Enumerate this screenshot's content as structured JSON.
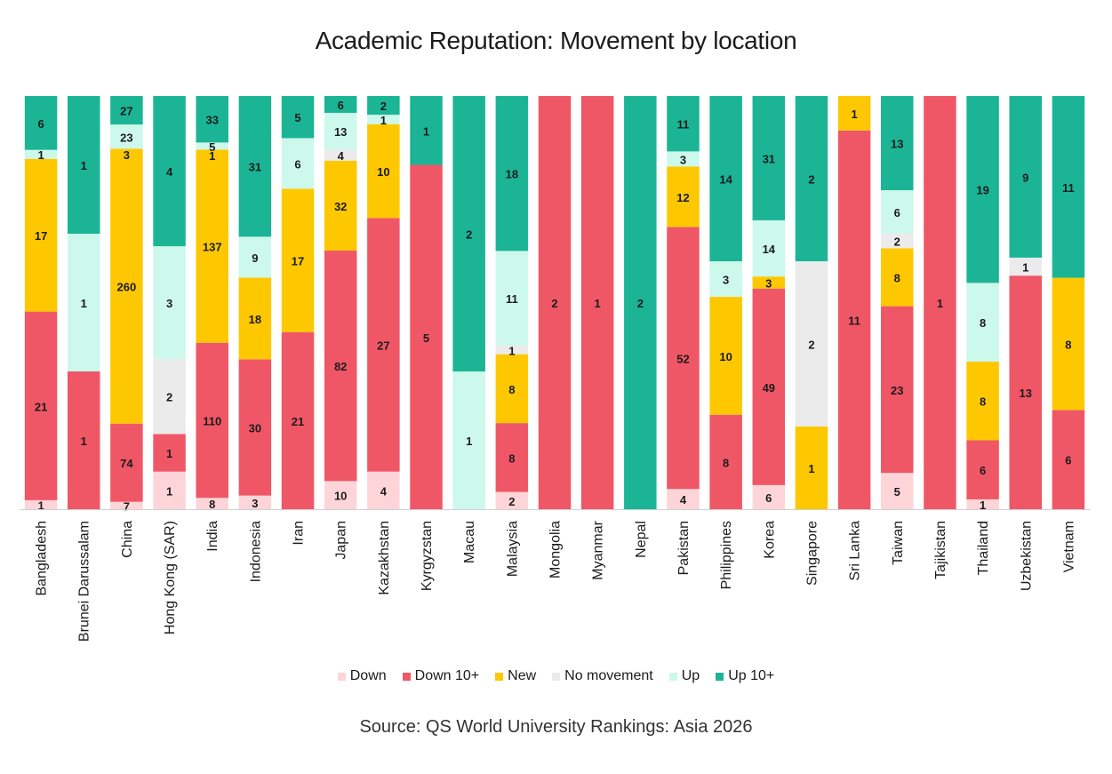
{
  "chart_data": {
    "type": "bar",
    "stacked": true,
    "normalized": true,
    "title": "Academic Reputation: Movement by location",
    "source": "Source: QS World University Rankings: Asia 2026",
    "xlabel": "",
    "ylabel": "",
    "legend_position": "bottom",
    "categories": [
      "Bangladesh",
      "Brunei Darussalam",
      "China",
      "Hong Kong (SAR)",
      "India",
      "Indonesia",
      "Iran",
      "Japan",
      "Kazakhstan",
      "Kyrgyzstan",
      "Macau",
      "Malaysia",
      "Mongolia",
      "Myanmar",
      "Nepal",
      "Pakistan",
      "Philippines",
      "Korea",
      "Singapore",
      "Sri Lanka",
      "Taiwan",
      "Tajikistan",
      "Thailand",
      "Uzbekistan",
      "Vietnam"
    ],
    "series": [
      {
        "name": "Down",
        "color": "#fdd5d8",
        "values": [
          1,
          0,
          7,
          1,
          8,
          3,
          0,
          10,
          4,
          0,
          0,
          2,
          0,
          0,
          0,
          4,
          0,
          6,
          0,
          0,
          5,
          0,
          1,
          0,
          0
        ]
      },
      {
        "name": "Down 10+",
        "color": "#f05766",
        "values": [
          21,
          1,
          74,
          1,
          110,
          30,
          21,
          82,
          27,
          5,
          0,
          8,
          2,
          1,
          0,
          52,
          8,
          49,
          0,
          11,
          23,
          1,
          6,
          13,
          6
        ]
      },
      {
        "name": "New",
        "color": "#fec800",
        "values": [
          17,
          0,
          260,
          0,
          137,
          18,
          17,
          32,
          10,
          0,
          0,
          8,
          0,
          0,
          0,
          12,
          10,
          3,
          1,
          1,
          8,
          0,
          8,
          0,
          8
        ]
      },
      {
        "name": "No movement",
        "color": "#ebebeb",
        "values": [
          0,
          0,
          0,
          2,
          0,
          0,
          0,
          4,
          0,
          0,
          0,
          1,
          0,
          0,
          0,
          0,
          0,
          0,
          2,
          0,
          2,
          0,
          0,
          1,
          0
        ]
      },
      {
        "name": "Up",
        "color": "#cdf8ec",
        "values": [
          1,
          1,
          23,
          3,
          5,
          9,
          6,
          13,
          1,
          0,
          1,
          11,
          0,
          0,
          0,
          3,
          3,
          14,
          0,
          0,
          6,
          0,
          8,
          0,
          0
        ]
      },
      {
        "name": "Up 10+",
        "color": "#1bb596",
        "values": [
          6,
          1,
          27,
          4,
          33,
          31,
          5,
          6,
          2,
          1,
          2,
          18,
          0,
          0,
          2,
          11,
          14,
          31,
          2,
          0,
          13,
          0,
          19,
          9,
          11
        ]
      }
    ],
    "extra_labels": [
      {
        "category": "China",
        "series": "New",
        "text": "3"
      },
      {
        "category": "India",
        "series": "New",
        "text": "1"
      }
    ]
  }
}
